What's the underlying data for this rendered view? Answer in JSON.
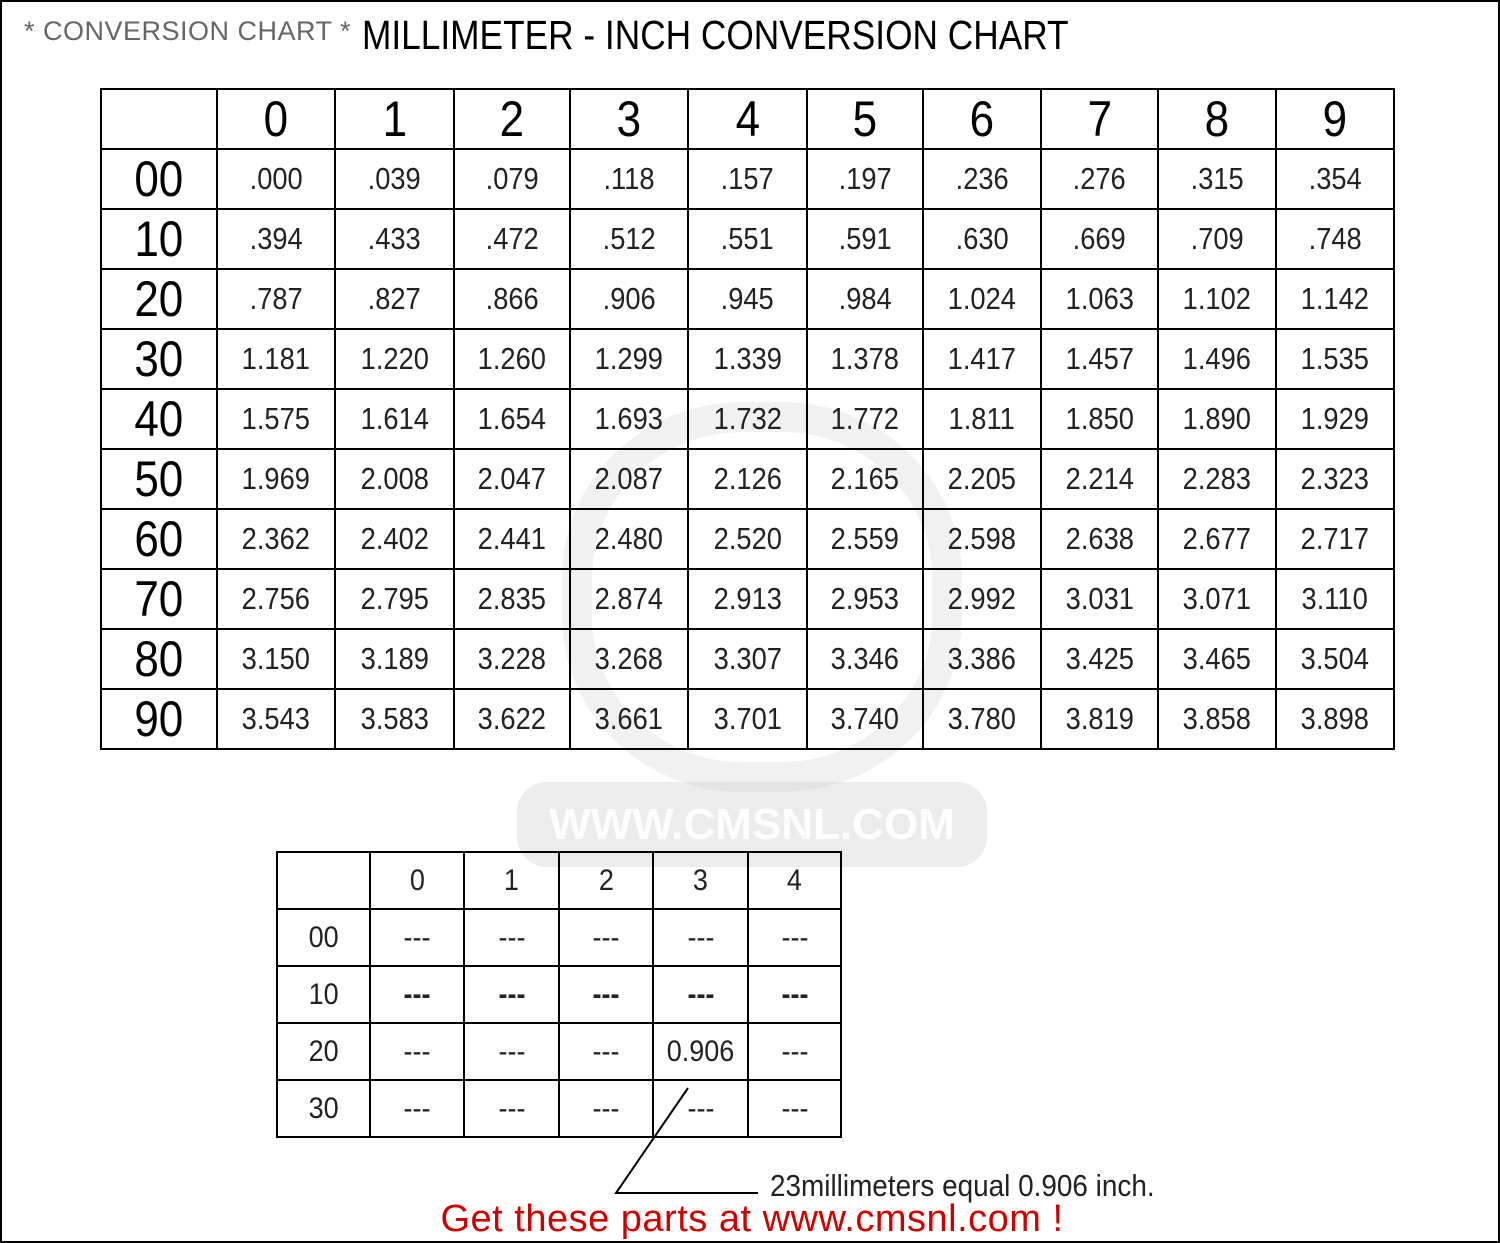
{
  "header": {
    "subtitle": "* CONVERSION CHART *",
    "title": "MILLIMETER - INCH CONVERSION CHART"
  },
  "main_table": {
    "columns": [
      "0",
      "1",
      "2",
      "3",
      "4",
      "5",
      "6",
      "7",
      "8",
      "9"
    ],
    "rows": [
      {
        "label": "00",
        "values": [
          ".000",
          ".039",
          ".079",
          ".118",
          ".157",
          ".197",
          ".236",
          ".276",
          ".315",
          ".354"
        ]
      },
      {
        "label": "10",
        "values": [
          ".394",
          ".433",
          ".472",
          ".512",
          ".551",
          ".591",
          ".630",
          ".669",
          ".709",
          ".748"
        ]
      },
      {
        "label": "20",
        "values": [
          ".787",
          ".827",
          ".866",
          ".906",
          ".945",
          ".984",
          "1.024",
          "1.063",
          "1.102",
          "1.142"
        ]
      },
      {
        "label": "30",
        "values": [
          "1.181",
          "1.220",
          "1.260",
          "1.299",
          "1.339",
          "1.378",
          "1.417",
          "1.457",
          "1.496",
          "1.535"
        ]
      },
      {
        "label": "40",
        "values": [
          "1.575",
          "1.614",
          "1.654",
          "1.693",
          "1.732",
          "1.772",
          "1.811",
          "1.850",
          "1.890",
          "1.929"
        ]
      },
      {
        "label": "50",
        "values": [
          "1.969",
          "2.008",
          "2.047",
          "2.087",
          "2.126",
          "2.165",
          "2.205",
          "2.214",
          "2.283",
          "2.323"
        ]
      },
      {
        "label": "60",
        "values": [
          "2.362",
          "2.402",
          "2.441",
          "2.480",
          "2.520",
          "2.559",
          "2.598",
          "2.638",
          "2.677",
          "2.717"
        ]
      },
      {
        "label": "70",
        "values": [
          "2.756",
          "2.795",
          "2.835",
          "2.874",
          "2.913",
          "2.953",
          "2.992",
          "3.031",
          "3.071",
          "3.110"
        ]
      },
      {
        "label": "80",
        "values": [
          "3.150",
          "3.189",
          "3.228",
          "3.268",
          "3.307",
          "3.346",
          "3.386",
          "3.425",
          "3.465",
          "3.504"
        ]
      },
      {
        "label": "90",
        "values": [
          "3.543",
          "3.583",
          "3.622",
          "3.661",
          "3.701",
          "3.740",
          "3.780",
          "3.819",
          "3.858",
          "3.898"
        ]
      }
    ]
  },
  "example_table": {
    "columns": [
      "0",
      "1",
      "2",
      "3",
      "4"
    ],
    "rows": [
      {
        "label": "00",
        "values": [
          "---",
          "---",
          "---",
          "---",
          "---"
        ]
      },
      {
        "label": "10",
        "values": [
          "---",
          "---",
          "---",
          "---",
          "---"
        ],
        "bold": true
      },
      {
        "label": "20",
        "values": [
          "---",
          "---",
          "---",
          "0.906",
          "---"
        ]
      },
      {
        "label": "30",
        "values": [
          "---",
          "---",
          "---",
          "---",
          "---"
        ]
      }
    ]
  },
  "example_note": "23millimeters equal 0.906 inch.",
  "watermark": "WWW.CMSNL.COM",
  "call_to_action": "Get these parts at www.cmsnl.com !",
  "colors": {
    "cta": "#d00000",
    "subtitle": "#666666"
  }
}
